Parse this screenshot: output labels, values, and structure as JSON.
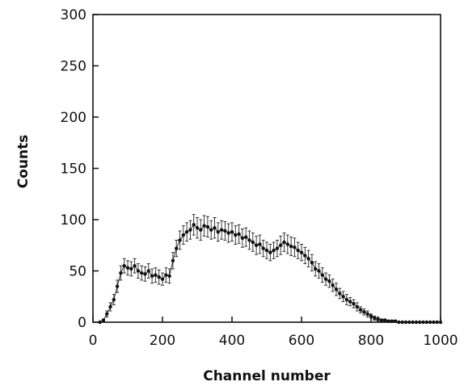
{
  "chart_data": {
    "type": "scatter",
    "title": "",
    "xlabel": "Channel number",
    "ylabel": "Counts",
    "xlim": [
      0,
      1000
    ],
    "ylim": [
      0,
      300
    ],
    "xticks": [
      0,
      200,
      400,
      600,
      800,
      1000
    ],
    "yticks": [
      0,
      50,
      100,
      150,
      200,
      250,
      300
    ],
    "grid": false,
    "legend": "none",
    "error_bars": true,
    "series": [
      {
        "x": [
          20,
          30,
          40,
          50,
          60,
          70,
          80,
          90,
          100,
          110,
          120,
          130,
          140,
          150,
          160,
          170,
          180,
          190,
          200,
          210,
          220,
          230,
          240,
          250,
          260,
          270,
          280,
          290,
          300,
          310,
          320,
          330,
          340,
          350,
          360,
          370,
          380,
          390,
          400,
          410,
          420,
          430,
          440,
          450,
          460,
          470,
          480,
          490,
          500,
          510,
          520,
          530,
          540,
          550,
          560,
          570,
          580,
          590,
          600,
          610,
          620,
          630,
          640,
          650,
          660,
          670,
          680,
          690,
          700,
          710,
          720,
          730,
          740,
          750,
          760,
          770,
          780,
          790,
          800,
          810,
          820,
          830,
          840,
          850,
          860,
          870,
          880,
          890,
          900,
          910,
          920,
          930,
          940,
          950,
          960,
          970,
          980,
          990,
          1000
        ],
        "y": [
          0,
          2,
          8,
          15,
          22,
          35,
          48,
          55,
          53,
          52,
          55,
          50,
          48,
          47,
          50,
          45,
          46,
          44,
          42,
          46,
          45,
          60,
          72,
          80,
          85,
          88,
          90,
          95,
          92,
          90,
          94,
          93,
          90,
          92,
          88,
          90,
          89,
          87,
          88,
          85,
          86,
          82,
          83,
          80,
          78,
          75,
          76,
          72,
          70,
          68,
          70,
          72,
          75,
          78,
          76,
          74,
          73,
          70,
          68,
          65,
          62,
          58,
          52,
          50,
          46,
          42,
          40,
          36,
          32,
          28,
          25,
          22,
          20,
          18,
          15,
          12,
          10,
          8,
          6,
          4,
          3,
          2,
          2,
          1,
          1,
          1,
          0,
          0,
          0,
          0,
          0,
          0,
          0,
          0,
          0,
          0,
          0,
          0,
          0
        ],
        "error": [
          0,
          1,
          3,
          4,
          5,
          6,
          7,
          7,
          7,
          7,
          7,
          7,
          7,
          7,
          7,
          7,
          7,
          7,
          6,
          7,
          7,
          8,
          8,
          9,
          9,
          9,
          9,
          10,
          10,
          10,
          10,
          10,
          9,
          10,
          9,
          9,
          9,
          9,
          9,
          9,
          9,
          9,
          9,
          9,
          9,
          9,
          9,
          8,
          8,
          8,
          8,
          8,
          9,
          9,
          9,
          9,
          9,
          8,
          8,
          8,
          8,
          8,
          7,
          7,
          7,
          6,
          6,
          6,
          6,
          5,
          5,
          5,
          4,
          4,
          4,
          3,
          3,
          3,
          2,
          2,
          2,
          1,
          1,
          1,
          1,
          1,
          0,
          0,
          0,
          0,
          0,
          0,
          0,
          0,
          0,
          0,
          0,
          0,
          0
        ]
      }
    ]
  }
}
